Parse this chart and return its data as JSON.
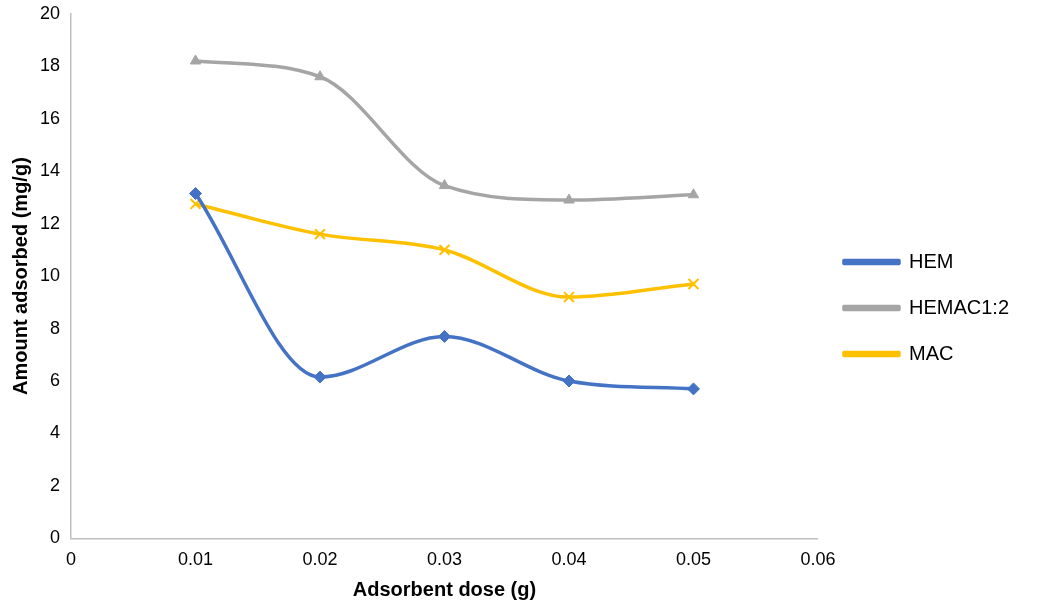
{
  "chart_data": {
    "type": "line",
    "xlabel": "Adsorbent dose (g)",
    "ylabel": "Amount adsorbed (mg/g)",
    "x": [
      0.01,
      0.02,
      0.03,
      0.04,
      0.05
    ],
    "series": [
      {
        "name": "HEM",
        "color": "#4472c4",
        "marker": "diamond",
        "values": [
          13.15,
          6.15,
          7.7,
          6.0,
          5.7
        ]
      },
      {
        "name": "HEMAC1:2",
        "color": "#a5a5a5",
        "marker": "triangle",
        "values": [
          18.2,
          17.6,
          13.45,
          12.9,
          13.1
        ]
      },
      {
        "name": "MAC",
        "color": "#ffc000",
        "marker": "cross",
        "values": [
          12.75,
          11.6,
          11.0,
          9.2,
          9.7
        ]
      }
    ],
    "xlim": [
      0,
      0.06
    ],
    "xticks": [
      0,
      0.01,
      0.02,
      0.03,
      0.04,
      0.05,
      0.06
    ],
    "ylim": [
      0,
      20
    ],
    "yticks": [
      0,
      2,
      4,
      6,
      8,
      10,
      12,
      14,
      16,
      18,
      20
    ],
    "grid": false,
    "legend": "right",
    "line_style": "solid"
  }
}
